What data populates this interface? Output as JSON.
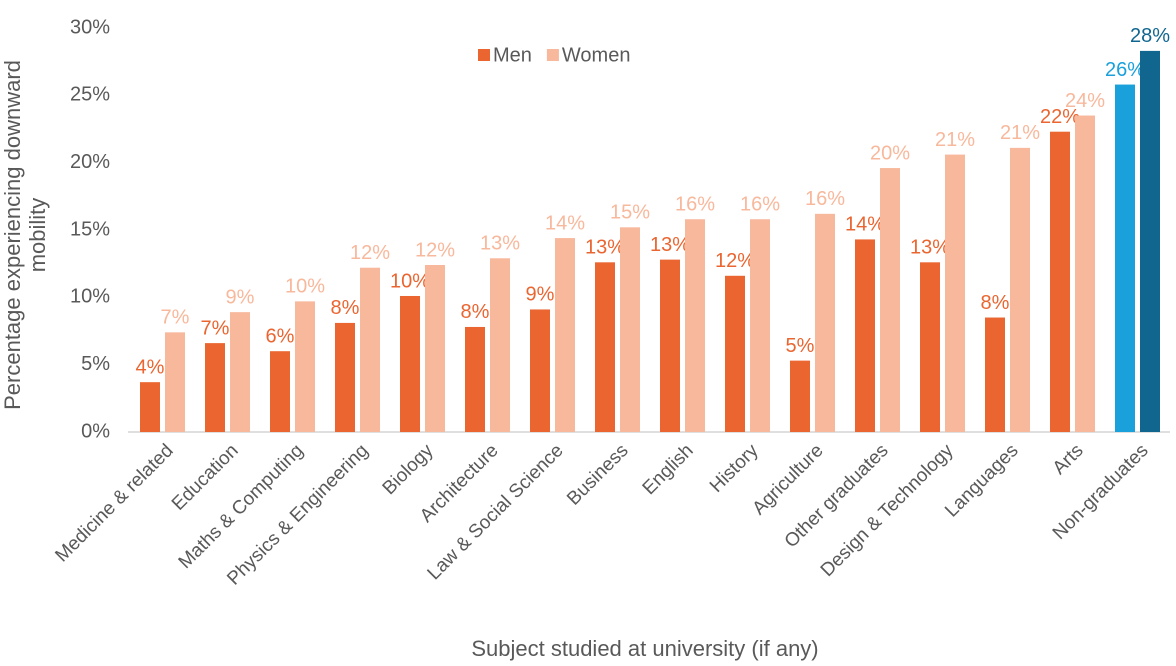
{
  "chart_data": {
    "type": "bar",
    "x_label": "Subject studied at university (if any)",
    "y_label": "Percentage experiencing downward mobility",
    "categories": [
      "Medicine & related",
      "Education",
      "Maths & Computing",
      "Physics & Engineering",
      "Biology",
      "Architecture",
      "Law & Social Science",
      "Business",
      "English",
      "History",
      "Agriculture",
      "Other graduates",
      "Design & Technology",
      "Languages",
      "Arts",
      "Non-graduates"
    ],
    "series": [
      {
        "name": "Men",
        "color": "#ea6530",
        "point_colors": [
          null,
          null,
          null,
          null,
          null,
          null,
          null,
          null,
          null,
          null,
          null,
          null,
          null,
          null,
          null,
          "#1aa0da"
        ],
        "values": [
          3.7,
          6.6,
          6.0,
          8.1,
          10.1,
          7.8,
          9.1,
          12.6,
          12.8,
          11.6,
          5.3,
          14.3,
          12.6,
          8.5,
          22.3,
          25.8
        ],
        "value_labels": [
          "4%",
          "7%",
          "6%",
          "8%",
          "10%",
          "8%",
          "9%",
          "13%",
          "13%",
          "12%",
          "5%",
          "14%",
          "13%",
          "8%",
          "22%",
          "26%"
        ]
      },
      {
        "name": "Women",
        "color": "#f8b89c",
        "point_colors": [
          null,
          null,
          null,
          null,
          null,
          null,
          null,
          null,
          null,
          null,
          null,
          null,
          null,
          null,
          null,
          "#10668f"
        ],
        "values": [
          7.4,
          8.9,
          9.7,
          12.2,
          12.4,
          12.9,
          14.4,
          15.2,
          15.8,
          15.8,
          16.2,
          19.6,
          20.6,
          21.1,
          23.5,
          28.3
        ],
        "value_labels": [
          "7%",
          "9%",
          "10%",
          "12%",
          "12%",
          "13%",
          "14%",
          "15%",
          "16%",
          "16%",
          "16%",
          "20%",
          "21%",
          "21%",
          "24%",
          "28%"
        ]
      }
    ],
    "ylim": [
      0,
      30
    ],
    "yticks": [
      {
        "value": 0,
        "label": "0%"
      },
      {
        "value": 5,
        "label": "5%"
      },
      {
        "value": 10,
        "label": "10%"
      },
      {
        "value": 15,
        "label": "15%"
      },
      {
        "value": 20,
        "label": "20%"
      },
      {
        "value": 25,
        "label": "25%"
      },
      {
        "value": 30,
        "label": "30%"
      }
    ],
    "grid": false,
    "legend": "top"
  }
}
